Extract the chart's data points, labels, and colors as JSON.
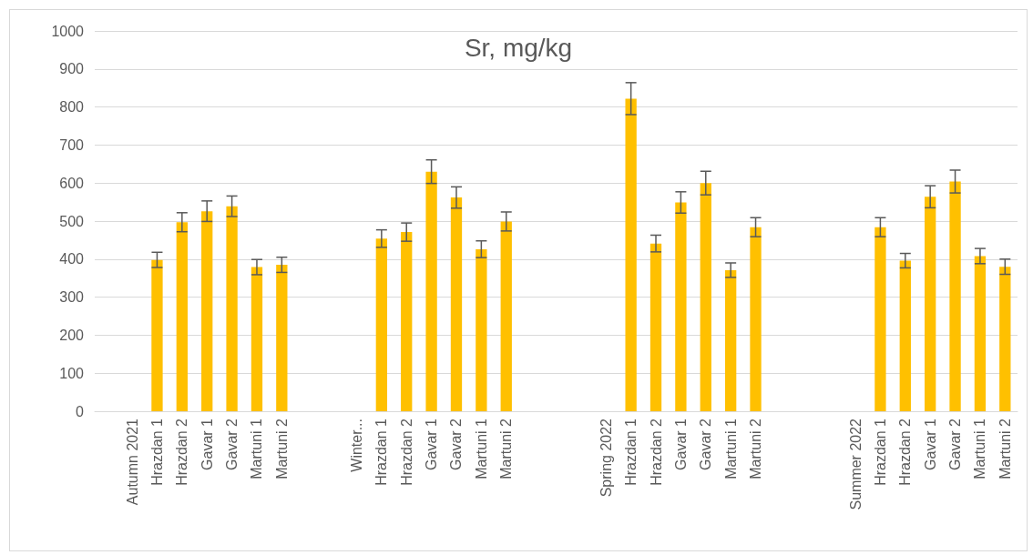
{
  "chart_data": {
    "type": "bar",
    "title": "Sr, mg/kg",
    "categories": [
      null,
      "Autumn 2021",
      "Hrazdan 1",
      "Hrazdan 2",
      "Gavar 1",
      "Gavar 2",
      "Martuni 1",
      "Martuni 2",
      null,
      null,
      "Winter...",
      "Hrazdan 1",
      "Hrazdan 2",
      "Gavar 1",
      "Gavar 2",
      "Martuni 1",
      "Martuni 2",
      null,
      null,
      null,
      "Spring 2022",
      "Hrazdan 1",
      "Hrazdan 2",
      "Gavar 1",
      "Gavar 2",
      "Martuni 1",
      "Martuni 2",
      null,
      null,
      null,
      "Summer 2022",
      "Hrazdan 1",
      "Hrazdan 2",
      "Gavar 1",
      "Gavar 2",
      "Martuni 1",
      "Martuni 2"
    ],
    "values": [
      null,
      0,
      398,
      497,
      526,
      539,
      379,
      385,
      null,
      null,
      0,
      454,
      471,
      630,
      562,
      426,
      499,
      null,
      null,
      null,
      0,
      822,
      441,
      549,
      600,
      371,
      484,
      null,
      null,
      null,
      0,
      484,
      396,
      564,
      604,
      408,
      380
    ],
    "errors": [
      null,
      null,
      20,
      25,
      27,
      27,
      20,
      20,
      null,
      null,
      null,
      23,
      24,
      31,
      28,
      22,
      25,
      null,
      null,
      null,
      null,
      42,
      22,
      28,
      31,
      19,
      25,
      null,
      null,
      null,
      null,
      25,
      19,
      29,
      30,
      20,
      20
    ],
    "color": "#ffc000",
    "ylim": [
      0,
      1000
    ],
    "yticks": [
      0,
      100,
      200,
      300,
      400,
      500,
      600,
      700,
      800,
      900,
      1000
    ],
    "grid": "y"
  }
}
